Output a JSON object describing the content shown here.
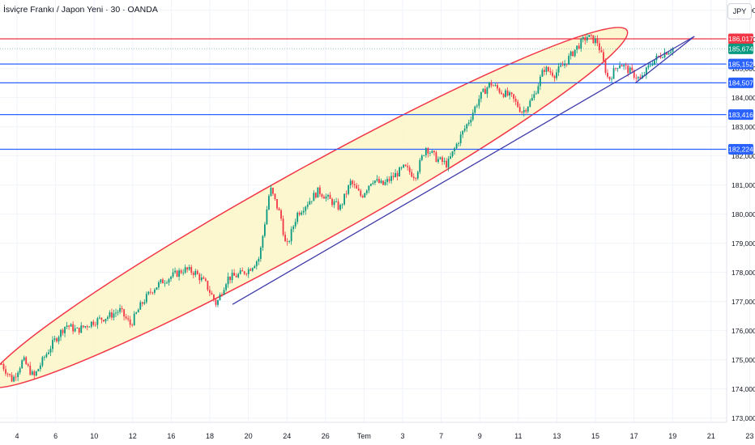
{
  "header": {
    "title": "İsviçre Frankı / Japon Yeni · 30 · OANDA",
    "currency": "JPY"
  },
  "colors": {
    "candle_up": "#089981",
    "candle_down": "#f23645",
    "level_line": "#2962ff",
    "resistance_line": "#f23645",
    "trend_line": "#3f3aa8",
    "ellipse_fill": "#fdf6c8",
    "ellipse_stroke": "#f23645",
    "last_price_label": "#089981"
  },
  "chart_data": {
    "type": "candlestick",
    "ylim": [
      172.85,
      187.35
    ],
    "y_ticks": [
      "173,000",
      "174,000",
      "175,000",
      "176,000",
      "177,000",
      "178,000",
      "179,000",
      "180,000",
      "181,000",
      "182,000",
      "183,000",
      "184,000",
      "185,000",
      "186,000",
      "187,000"
    ],
    "x_tick_labels": [
      "4",
      "6",
      "10",
      "12",
      "16",
      "18",
      "20",
      "24",
      "26",
      "Tem",
      "3",
      "7",
      "9",
      "11",
      "13",
      "15",
      "17",
      "19",
      "21",
      "23"
    ],
    "path": [
      {
        "t": 0,
        "p": 174.85
      },
      {
        "t": 2,
        "p": 174.3
      },
      {
        "t": 4,
        "p": 175.0
      },
      {
        "t": 6,
        "p": 174.4
      },
      {
        "t": 8,
        "p": 175.1
      },
      {
        "t": 10,
        "p": 175.7
      },
      {
        "t": 12,
        "p": 176.2
      },
      {
        "t": 14,
        "p": 176.0
      },
      {
        "t": 17,
        "p": 176.3
      },
      {
        "t": 20,
        "p": 176.5
      },
      {
        "t": 22,
        "p": 176.7
      },
      {
        "t": 24,
        "p": 176.2
      },
      {
        "t": 26,
        "p": 176.9
      },
      {
        "t": 28,
        "p": 177.4
      },
      {
        "t": 30,
        "p": 177.7
      },
      {
        "t": 32,
        "p": 177.9
      },
      {
        "t": 34,
        "p": 178.1
      },
      {
        "t": 36,
        "p": 178.0
      },
      {
        "t": 38,
        "p": 177.6
      },
      {
        "t": 40,
        "p": 176.9
      },
      {
        "t": 42,
        "p": 177.8
      },
      {
        "t": 44,
        "p": 177.9
      },
      {
        "t": 46,
        "p": 178.1
      },
      {
        "t": 48,
        "p": 178.5
      },
      {
        "t": 50,
        "p": 180.9
      },
      {
        "t": 52,
        "p": 179.9
      },
      {
        "t": 53,
        "p": 178.8
      },
      {
        "t": 55,
        "p": 180.0
      },
      {
        "t": 57,
        "p": 180.4
      },
      {
        "t": 59,
        "p": 180.8
      },
      {
        "t": 61,
        "p": 180.5
      },
      {
        "t": 63,
        "p": 180.2
      },
      {
        "t": 65,
        "p": 181.1
      },
      {
        "t": 67,
        "p": 180.6
      },
      {
        "t": 69,
        "p": 181.2
      },
      {
        "t": 71,
        "p": 181.0
      },
      {
        "t": 73,
        "p": 181.3
      },
      {
        "t": 75,
        "p": 181.6
      },
      {
        "t": 77,
        "p": 181.3
      },
      {
        "t": 79,
        "p": 182.3
      },
      {
        "t": 81,
        "p": 181.9
      },
      {
        "t": 83,
        "p": 181.7
      },
      {
        "t": 85,
        "p": 182.5
      },
      {
        "t": 87,
        "p": 183.2
      },
      {
        "t": 89,
        "p": 184.0
      },
      {
        "t": 91,
        "p": 184.5
      },
      {
        "t": 93,
        "p": 184.2
      },
      {
        "t": 95,
        "p": 184.0
      },
      {
        "t": 97,
        "p": 183.5
      },
      {
        "t": 99,
        "p": 184.0
      },
      {
        "t": 101,
        "p": 185.0
      },
      {
        "t": 103,
        "p": 184.8
      },
      {
        "t": 105,
        "p": 185.2
      },
      {
        "t": 107,
        "p": 185.7
      },
      {
        "t": 109,
        "p": 186.1
      },
      {
        "t": 111,
        "p": 185.9
      },
      {
        "t": 113,
        "p": 184.6
      },
      {
        "t": 115,
        "p": 185.2
      },
      {
        "t": 117,
        "p": 184.9
      },
      {
        "t": 119,
        "p": 184.6
      },
      {
        "t": 121,
        "p": 185.2
      },
      {
        "t": 123,
        "p": 185.5
      },
      {
        "t": 125,
        "p": 185.7
      }
    ],
    "levels": [
      {
        "value": 186.017,
        "label": "186,017",
        "kind": "resistance"
      },
      {
        "value": 185.152,
        "label": "185,152",
        "kind": "support"
      },
      {
        "value": 184.507,
        "label": "184,507",
        "kind": "support"
      },
      {
        "value": 183.416,
        "label": "183,416",
        "kind": "support"
      },
      {
        "value": 182.224,
        "label": "182,224",
        "kind": "support"
      }
    ],
    "last_price": {
      "value": 185.674,
      "label": "185,674"
    },
    "trend_line": [
      {
        "t": 43,
        "p": 176.9
      },
      {
        "t": 129,
        "p": 186.1
      }
    ],
    "lower_wedge_line": [
      {
        "t": 118,
        "p": 184.5
      },
      {
        "t": 129,
        "p": 186.1
      }
    ],
    "ellipse_annotation": true
  }
}
